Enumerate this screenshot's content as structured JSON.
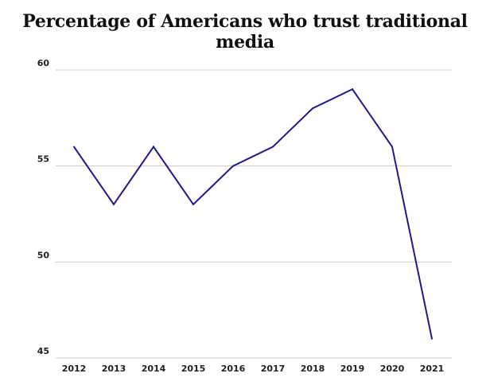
{
  "chart_data": {
    "type": "line",
    "title": "Percentage of Americans who trust traditional media",
    "xlabel": "",
    "ylabel": "",
    "categories": [
      "2012",
      "2013",
      "2014",
      "2015",
      "2016",
      "2017",
      "2018",
      "2019",
      "2020",
      "2021"
    ],
    "series": [
      {
        "values": [
          56,
          53,
          56,
          53,
          55,
          56,
          58,
          59,
          56,
          46
        ]
      }
    ],
    "ylim": [
      45,
      60
    ],
    "yticks": [
      45,
      50,
      55,
      60
    ],
    "grid": true,
    "legend": "none",
    "line_color": "#1f1a8c",
    "grid_color": "#cccccc"
  }
}
